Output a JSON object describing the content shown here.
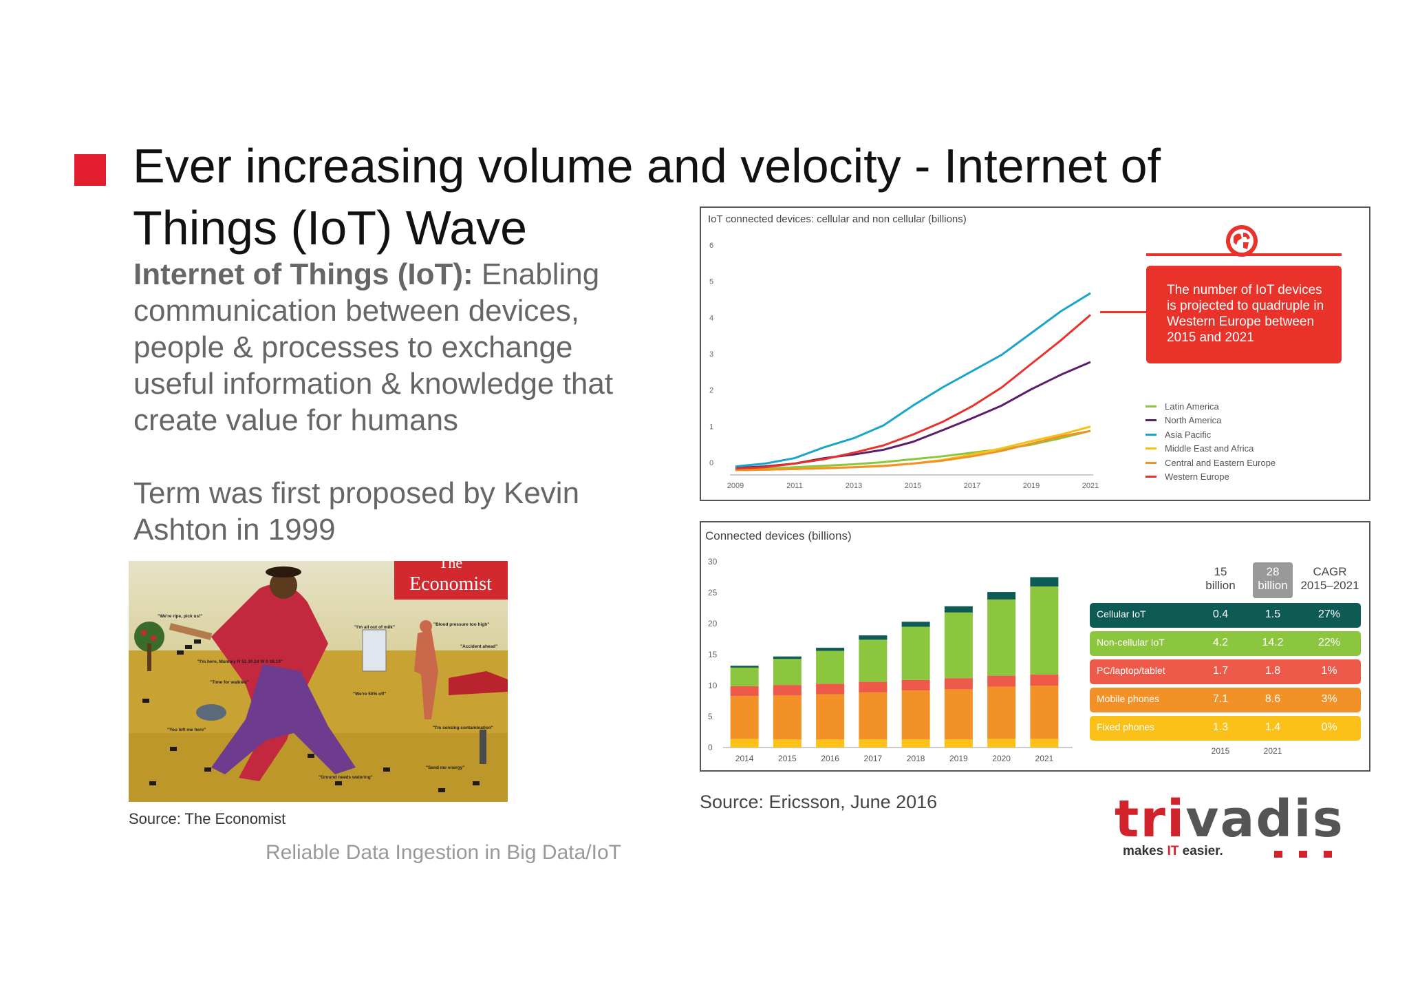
{
  "slide": {
    "title": "Ever increasing volume and velocity - Internet of Things (IoT) Wave",
    "intro_bold": "Internet of Things (IoT):",
    "intro_rest": " Enabling communication between devices, people & processes to exchange useful information & knowledge that create value for humans",
    "term": "Term was first proposed by Kevin Ashton in 1999",
    "economist_source": "Source: The Economist",
    "ericsson_source": "Source: Ericsson, June 2016",
    "footer": "Reliable Data Ingestion in Big Data/IoT",
    "accent_color": "#e31e2e"
  },
  "economist_image": {
    "masthead_top": "The",
    "masthead": "Economist",
    "bubbles": [
      "\"We're ripe, pick us!\"",
      "\"I'm all out of milk\"",
      "\"Blood pressure too high\"",
      "\"Accident ahead\"",
      "\"I'm here, Mummy N 51 30.24 W 0 08.19\"",
      "\"Time for walkies\"",
      "\"We're 50% off\"",
      "\"You left me here\"",
      "\"I'm sensing contamination\"",
      "\"Send me energy\"",
      "\"Ground needs watering\""
    ]
  },
  "logo": {
    "word_a": "tri",
    "word_b": "vadis",
    "tag_a": "makes ",
    "tag_b": "IT",
    "tag_c": " easier."
  },
  "chart_data": [
    {
      "type": "line",
      "title": "IoT connected devices: cellular and non cellular (billions)",
      "x": [
        2009,
        2010,
        2011,
        2012,
        2013,
        2014,
        2015,
        2016,
        2017,
        2018,
        2019,
        2020,
        2021
      ],
      "x_ticks": [
        2009,
        2011,
        2013,
        2015,
        2017,
        2019,
        2021
      ],
      "ylim": [
        0,
        6
      ],
      "y_ticks": [
        0,
        1,
        2,
        3,
        4,
        5,
        6
      ],
      "legend_position": "right",
      "grid": false,
      "series": [
        {
          "name": "Latin America",
          "color": "#8cc63f",
          "values": [
            0.03,
            0.06,
            0.1,
            0.14,
            0.18,
            0.24,
            0.32,
            0.4,
            0.5,
            0.6,
            0.72,
            0.9,
            1.1
          ]
        },
        {
          "name": "North America",
          "color": "#5b1f69",
          "values": [
            0.08,
            0.12,
            0.2,
            0.35,
            0.45,
            0.58,
            0.8,
            1.12,
            1.45,
            1.8,
            2.25,
            2.65,
            3.0
          ]
        },
        {
          "name": "Asia Pacific",
          "color": "#1aa6c8",
          "values": [
            0.12,
            0.2,
            0.35,
            0.65,
            0.9,
            1.25,
            1.8,
            2.3,
            2.75,
            3.2,
            3.8,
            4.4,
            4.9
          ]
        },
        {
          "name": "Middle East and Africa",
          "color": "#f6c21a",
          "values": [
            0.02,
            0.03,
            0.05,
            0.08,
            0.1,
            0.14,
            0.2,
            0.3,
            0.45,
            0.62,
            0.82,
            1.0,
            1.22
          ]
        },
        {
          "name": "Central and Eastern Europe",
          "color": "#f39129",
          "values": [
            0.02,
            0.03,
            0.05,
            0.07,
            0.1,
            0.13,
            0.2,
            0.28,
            0.4,
            0.55,
            0.75,
            0.95,
            1.1
          ]
        },
        {
          "name": "Western Europe",
          "color": "#e8322a",
          "values": [
            0.06,
            0.1,
            0.2,
            0.32,
            0.5,
            0.7,
            1.0,
            1.35,
            1.78,
            2.3,
            2.95,
            3.6,
            4.3
          ]
        }
      ],
      "callout": "The number of IoT devices is projected to quadruple in Western Europe between 2015 and 2021"
    },
    {
      "type": "bar",
      "stacked": true,
      "title": "Connected devices (billions)",
      "categories": [
        "2014",
        "2015",
        "2016",
        "2017",
        "2018",
        "2019",
        "2020",
        "2021"
      ],
      "ylim": [
        0,
        30
      ],
      "y_ticks": [
        0,
        5,
        10,
        15,
        20,
        25,
        30
      ],
      "series": [
        {
          "name": "Fixed phones",
          "color": "#fbc119",
          "values": [
            1.4,
            1.3,
            1.3,
            1.3,
            1.3,
            1.3,
            1.4,
            1.4
          ]
        },
        {
          "name": "Mobile phones",
          "color": "#f39129",
          "values": [
            6.9,
            7.1,
            7.3,
            7.6,
            7.9,
            8.1,
            8.4,
            8.6
          ]
        },
        {
          "name": "PC/laptop/tablet",
          "color": "#ee5a4a",
          "values": [
            1.6,
            1.7,
            1.7,
            1.7,
            1.7,
            1.8,
            1.8,
            1.8
          ]
        },
        {
          "name": "Non-cellular IoT",
          "color": "#8cc63f",
          "values": [
            3.0,
            4.2,
            5.3,
            6.8,
            8.6,
            10.6,
            12.3,
            14.2
          ]
        },
        {
          "name": "Cellular IoT",
          "color": "#0e5a54",
          "values": [
            0.3,
            0.4,
            0.5,
            0.7,
            0.8,
            1.0,
            1.2,
            1.5
          ]
        }
      ],
      "table": {
        "col_2015_top": "15",
        "col_2015_bottom": "billion",
        "col_2021_top": "28",
        "col_2021_bottom": "billion",
        "col_cagr_top": "CAGR",
        "col_cagr_bottom": "2015–2021",
        "footer_2015": "2015",
        "footer_2021": "2021",
        "rows": [
          {
            "label": "Cellular IoT",
            "v2015": "0.4",
            "v2021": "1.5",
            "cagr": "27%",
            "color": "#0e5a54"
          },
          {
            "label": "Non-cellular IoT",
            "v2015": "4.2",
            "v2021": "14.2",
            "cagr": "22%",
            "color": "#8cc63f"
          },
          {
            "label": "PC/laptop/tablet",
            "v2015": "1.7",
            "v2021": "1.8",
            "cagr": "1%",
            "color": "#ee5a4a"
          },
          {
            "label": "Mobile phones",
            "v2015": "7.1",
            "v2021": "8.6",
            "cagr": "3%",
            "color": "#f39129"
          },
          {
            "label": "Fixed phones",
            "v2015": "1.3",
            "v2021": "1.4",
            "cagr": "0%",
            "color": "#fbc119"
          }
        ]
      }
    }
  ]
}
